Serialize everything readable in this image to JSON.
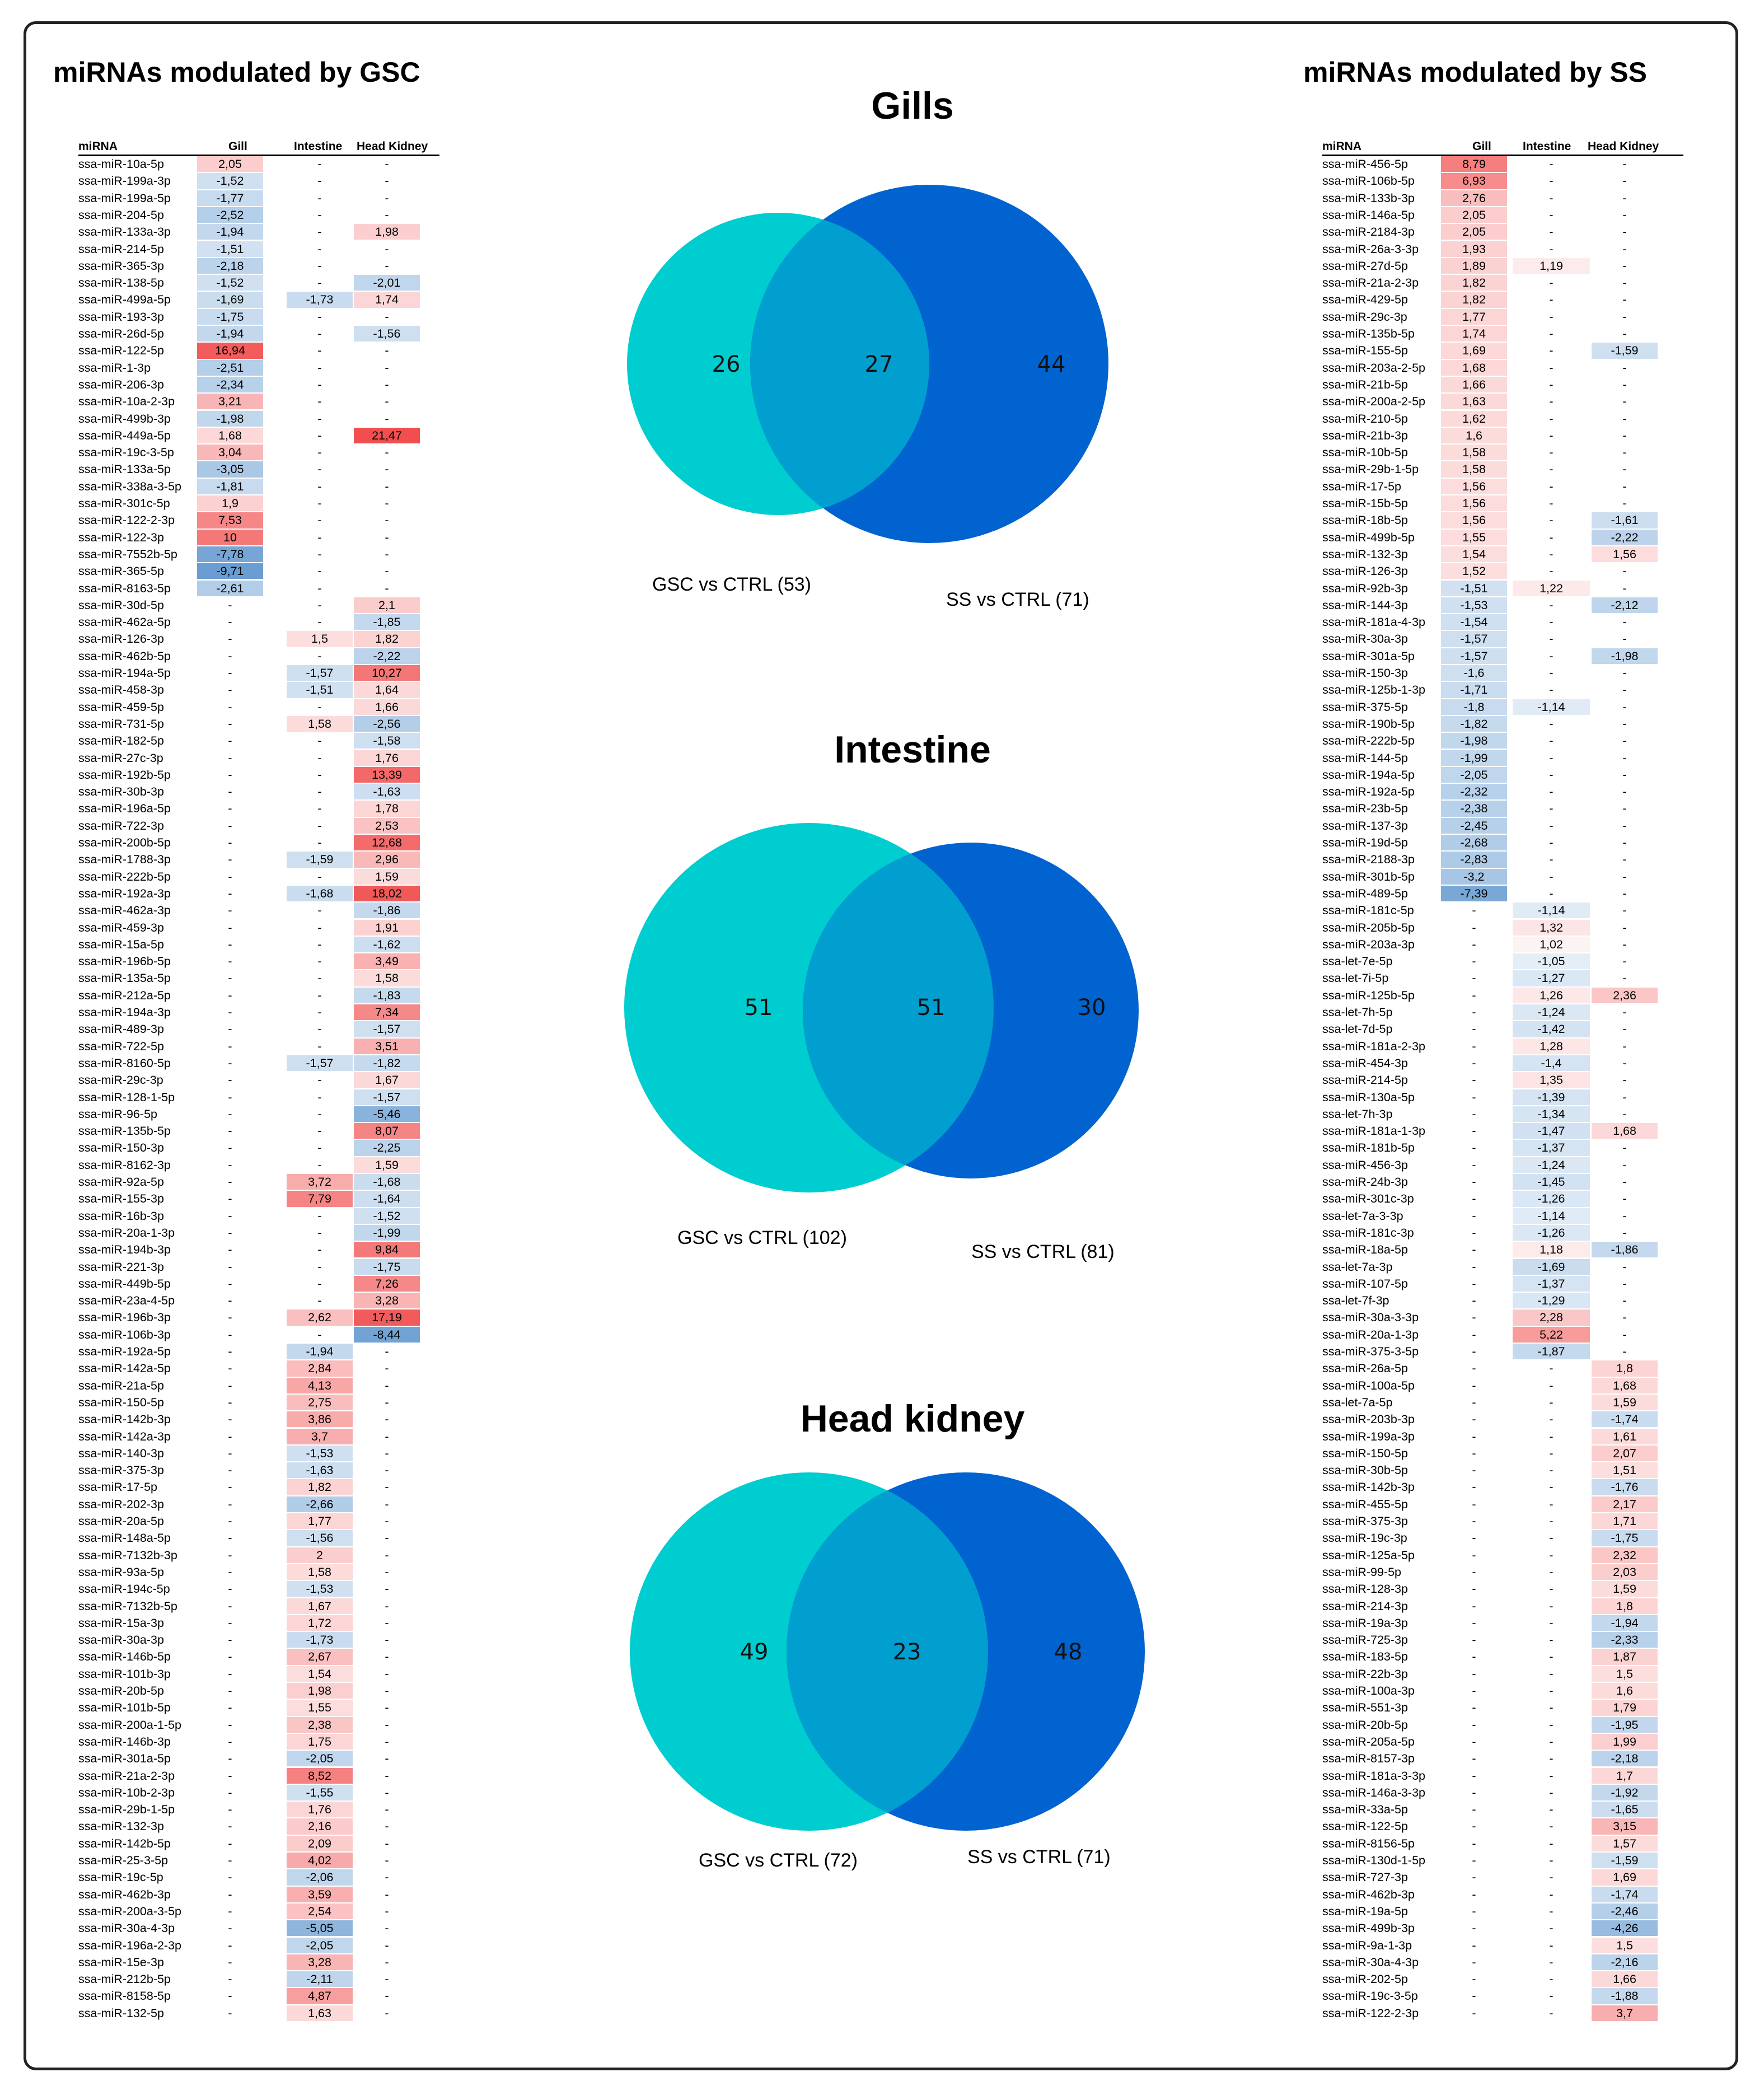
{
  "left_heading": "miRNAs modulated by GSC",
  "right_heading": "miRNAs modulated by SS",
  "table_headers": {
    "mirna": "miRNA",
    "gill": "Gill",
    "intestine": "Intestine",
    "head_kidney": "Head Kidney"
  },
  "colors": {
    "cyan": "#00cdd0",
    "blue": "#0063cf",
    "overlap": "#009fd0",
    "up": "#f05555",
    "down": "#3b7fc4"
  },
  "venns": [
    {
      "title": "Gills",
      "left": "26",
      "middle": "27",
      "right": "44",
      "left_label": "GSC vs CTRL (53)",
      "right_label": "SS vs CTRL (71)"
    },
    {
      "title": "Intestine",
      "left": "51",
      "middle": "51",
      "right": "30",
      "left_label": "GSC vs CTRL (102)",
      "right_label": "SS vs CTRL (81)"
    },
    {
      "title": "Head kidney",
      "left": "49",
      "middle": "23",
      "right": "48",
      "left_label": "GSC vs CTRL (72)",
      "right_label": "SS vs CTRL (71)"
    }
  ],
  "gsc_rows": [
    [
      "ssa-miR-10a-5p",
      "2,05",
      "-",
      "-"
    ],
    [
      "ssa-miR-199a-3p",
      "-1,52",
      "-",
      "-"
    ],
    [
      "ssa-miR-199a-5p",
      "-1,77",
      "-",
      "-"
    ],
    [
      "ssa-miR-204-5p",
      "-2,52",
      "-",
      "-"
    ],
    [
      "ssa-miR-133a-3p",
      "-1,94",
      "-",
      "1,98"
    ],
    [
      "ssa-miR-214-5p",
      "-1,51",
      "-",
      "-"
    ],
    [
      "ssa-miR-365-3p",
      "-2,18",
      "-",
      "-"
    ],
    [
      "ssa-miR-138-5p",
      "-1,52",
      "-",
      "-2,01"
    ],
    [
      "ssa-miR-499a-5p",
      "-1,69",
      "-1,73",
      "1,74"
    ],
    [
      "ssa-miR-193-3p",
      "-1,75",
      "-",
      "-"
    ],
    [
      "ssa-miR-26d-5p",
      "-1,94",
      "-",
      "-1,56"
    ],
    [
      "ssa-miR-122-5p",
      "16,94",
      "-",
      "-"
    ],
    [
      "ssa-miR-1-3p",
      "-2,51",
      "-",
      "-"
    ],
    [
      "ssa-miR-206-3p",
      "-2,34",
      "-",
      "-"
    ],
    [
      "ssa-miR-10a-2-3p",
      "3,21",
      "-",
      "-"
    ],
    [
      "ssa-miR-499b-3p",
      "-1,98",
      "-",
      "-"
    ],
    [
      "ssa-miR-449a-5p",
      "1,68",
      "-",
      "21,47"
    ],
    [
      "ssa-miR-19c-3-5p",
      "3,04",
      "-",
      "-"
    ],
    [
      "ssa-miR-133a-5p",
      "-3,05",
      "-",
      "-"
    ],
    [
      "ssa-miR-338a-3-5p",
      "-1,81",
      "-",
      "-"
    ],
    [
      "ssa-miR-301c-5p",
      "1,9",
      "-",
      "-"
    ],
    [
      "ssa-miR-122-2-3p",
      "7,53",
      "-",
      "-"
    ],
    [
      "ssa-miR-122-3p",
      "10",
      "-",
      "-"
    ],
    [
      "ssa-miR-7552b-5p",
      "-7,78",
      "-",
      "-"
    ],
    [
      "ssa-miR-365-5p",
      "-9,71",
      "-",
      "-"
    ],
    [
      "ssa-miR-8163-5p",
      "-2,61",
      "-",
      "-"
    ],
    [
      "ssa-miR-30d-5p",
      "-",
      "-",
      "2,1"
    ],
    [
      "ssa-miR-462a-5p",
      "-",
      "-",
      "-1,85"
    ],
    [
      "ssa-miR-126-3p",
      "-",
      "1,5",
      "1,82"
    ],
    [
      "ssa-miR-462b-5p",
      "-",
      "-",
      "-2,22"
    ],
    [
      "ssa-miR-194a-5p",
      "-",
      "-1,57",
      "10,27"
    ],
    [
      "ssa-miR-458-3p",
      "-",
      "-1,51",
      "1,64"
    ],
    [
      "ssa-miR-459-5p",
      "-",
      "-",
      "1,66"
    ],
    [
      "ssa-miR-731-5p",
      "-",
      "1,58",
      "-2,56"
    ],
    [
      "ssa-miR-182-5p",
      "-",
      "-",
      "-1,58"
    ],
    [
      "ssa-miR-27c-3p",
      "-",
      "-",
      "1,76"
    ],
    [
      "ssa-miR-192b-5p",
      "-",
      "-",
      "13,39"
    ],
    [
      "ssa-miR-30b-3p",
      "-",
      "-",
      "-1,63"
    ],
    [
      "ssa-miR-196a-5p",
      "-",
      "-",
      "1,78"
    ],
    [
      "ssa-miR-722-3p",
      "-",
      "-",
      "2,53"
    ],
    [
      "ssa-miR-200b-5p",
      "-",
      "-",
      "12,68"
    ],
    [
      "ssa-miR-1788-3p",
      "-",
      "-1,59",
      "2,96"
    ],
    [
      "ssa-miR-222b-5p",
      "-",
      "-",
      "1,59"
    ],
    [
      "ssa-miR-192a-3p",
      "-",
      "-1,68",
      "18,02"
    ],
    [
      "ssa-miR-462a-3p",
      "-",
      "-",
      "-1,86"
    ],
    [
      "ssa-miR-459-3p",
      "-",
      "-",
      "1,91"
    ],
    [
      "ssa-miR-15a-5p",
      "-",
      "-",
      "-1,62"
    ],
    [
      "ssa-miR-196b-5p",
      "-",
      "-",
      "3,49"
    ],
    [
      "ssa-miR-135a-5p",
      "-",
      "-",
      "1,58"
    ],
    [
      "ssa-miR-212a-5p",
      "-",
      "-",
      "-1,83"
    ],
    [
      "ssa-miR-194a-3p",
      "-",
      "-",
      "7,34"
    ],
    [
      "ssa-miR-489-3p",
      "-",
      "-",
      "-1,57"
    ],
    [
      "ssa-miR-722-5p",
      "-",
      "-",
      "3,51"
    ],
    [
      "ssa-miR-8160-5p",
      "-",
      "-1,57",
      "-1,82"
    ],
    [
      "ssa-miR-29c-3p",
      "-",
      "-",
      "1,67"
    ],
    [
      "ssa-miR-128-1-5p",
      "-",
      "-",
      "-1,57"
    ],
    [
      "ssa-miR-96-5p",
      "-",
      "-",
      "-5,46"
    ],
    [
      "ssa-miR-135b-5p",
      "-",
      "-",
      "8,07"
    ],
    [
      "ssa-miR-150-3p",
      "-",
      "-",
      "-2,25"
    ],
    [
      "ssa-miR-8162-3p",
      "-",
      "-",
      "1,59"
    ],
    [
      "ssa-miR-92a-5p",
      "-",
      "3,72",
      "-1,68"
    ],
    [
      "ssa-miR-155-3p",
      "-",
      "7,79",
      "-1,64"
    ],
    [
      "ssa-miR-16b-3p",
      "-",
      "-",
      "-1,52"
    ],
    [
      "ssa-miR-20a-1-3p",
      "-",
      "-",
      "-1,99"
    ],
    [
      "ssa-miR-194b-3p",
      "-",
      "-",
      "9,84"
    ],
    [
      "ssa-miR-221-3p",
      "-",
      "-",
      "-1,75"
    ],
    [
      "ssa-miR-449b-5p",
      "-",
      "-",
      "7,26"
    ],
    [
      "ssa-miR-23a-4-5p",
      "-",
      "-",
      "3,28"
    ],
    [
      "ssa-miR-196b-3p",
      "-",
      "2,62",
      "17,19"
    ],
    [
      "ssa-miR-106b-3p",
      "-",
      "-",
      "-8,44"
    ],
    [
      "ssa-miR-192a-5p",
      "-",
      "-1,94",
      "-"
    ],
    [
      "ssa-miR-142a-5p",
      "-",
      "2,84",
      "-"
    ],
    [
      "ssa-miR-21a-5p",
      "-",
      "4,13",
      "-"
    ],
    [
      "ssa-miR-150-5p",
      "-",
      "2,75",
      "-"
    ],
    [
      "ssa-miR-142b-3p",
      "-",
      "3,86",
      "-"
    ],
    [
      "ssa-miR-142a-3p",
      "-",
      "3,7",
      "-"
    ],
    [
      "ssa-miR-140-3p",
      "-",
      "-1,53",
      "-"
    ],
    [
      "ssa-miR-375-3p",
      "-",
      "-1,63",
      "-"
    ],
    [
      "ssa-miR-17-5p",
      "-",
      "1,82",
      "-"
    ],
    [
      "ssa-miR-202-3p",
      "-",
      "-2,66",
      "-"
    ],
    [
      "ssa-miR-20a-5p",
      "-",
      "1,77",
      "-"
    ],
    [
      "ssa-miR-148a-5p",
      "-",
      "-1,56",
      "-"
    ],
    [
      "ssa-miR-7132b-3p",
      "-",
      "2",
      "-"
    ],
    [
      "ssa-miR-93a-5p",
      "-",
      "1,58",
      "-"
    ],
    [
      "ssa-miR-194c-5p",
      "-",
      "-1,53",
      "-"
    ],
    [
      "ssa-miR-7132b-5p",
      "-",
      "1,67",
      "-"
    ],
    [
      "ssa-miR-15a-3p",
      "-",
      "1,72",
      "-"
    ],
    [
      "ssa-miR-30a-3p",
      "-",
      "-1,73",
      "-"
    ],
    [
      "ssa-miR-146b-5p",
      "-",
      "2,67",
      "-"
    ],
    [
      "ssa-miR-101b-3p",
      "-",
      "1,54",
      "-"
    ],
    [
      "ssa-miR-20b-5p",
      "-",
      "1,98",
      "-"
    ],
    [
      "ssa-miR-101b-5p",
      "-",
      "1,55",
      "-"
    ],
    [
      "ssa-miR-200a-1-5p",
      "-",
      "2,38",
      "-"
    ],
    [
      "ssa-miR-146b-3p",
      "-",
      "1,75",
      "-"
    ],
    [
      "ssa-miR-301a-5p",
      "-",
      "-2,05",
      "-"
    ],
    [
      "ssa-miR-21a-2-3p",
      "-",
      "8,52",
      "-"
    ],
    [
      "ssa-miR-10b-2-3p",
      "-",
      "-1,55",
      "-"
    ],
    [
      "ssa-miR-29b-1-5p",
      "-",
      "1,76",
      "-"
    ],
    [
      "ssa-miR-132-3p",
      "-",
      "2,16",
      "-"
    ],
    [
      "ssa-miR-142b-5p",
      "-",
      "2,09",
      "-"
    ],
    [
      "ssa-miR-25-3-5p",
      "-",
      "4,02",
      "-"
    ],
    [
      "ssa-miR-19c-5p",
      "-",
      "-2,06",
      "-"
    ],
    [
      "ssa-miR-462b-3p",
      "-",
      "3,59",
      "-"
    ],
    [
      "ssa-miR-200a-3-5p",
      "-",
      "2,54",
      "-"
    ],
    [
      "ssa-miR-30a-4-3p",
      "-",
      "-5,05",
      "-"
    ],
    [
      "ssa-miR-196a-2-3p",
      "-",
      "-2,05",
      "-"
    ],
    [
      "ssa-miR-15e-3p",
      "-",
      "3,28",
      "-"
    ],
    [
      "ssa-miR-212b-5p",
      "-",
      "-2,11",
      "-"
    ],
    [
      "ssa-miR-8158-5p",
      "-",
      "4,87",
      "-"
    ],
    [
      "ssa-miR-132-5p",
      "-",
      "1,63",
      "-"
    ]
  ],
  "ss_rows": [
    [
      "ssa-miR-456-5p",
      "8,79",
      "-",
      "-"
    ],
    [
      "ssa-miR-106b-5p",
      "6,93",
      "-",
      "-"
    ],
    [
      "ssa-miR-133b-3p",
      "2,76",
      "-",
      "-"
    ],
    [
      "ssa-miR-146a-5p",
      "2,05",
      "-",
      "-"
    ],
    [
      "ssa-miR-2184-3p",
      "2,05",
      "-",
      "-"
    ],
    [
      "ssa-miR-26a-3-3p",
      "1,93",
      "-",
      "-"
    ],
    [
      "ssa-miR-27d-5p",
      "1,89",
      "1,19",
      "-"
    ],
    [
      "ssa-miR-21a-2-3p",
      "1,82",
      "-",
      "-"
    ],
    [
      "ssa-miR-429-5p",
      "1,82",
      "-",
      "-"
    ],
    [
      "ssa-miR-29c-3p",
      "1,77",
      "-",
      "-"
    ],
    [
      "ssa-miR-135b-5p",
      "1,74",
      "-",
      "-"
    ],
    [
      "ssa-miR-155-5p",
      "1,69",
      "-",
      "-1,59"
    ],
    [
      "ssa-miR-203a-2-5p",
      "1,68",
      "-",
      "-"
    ],
    [
      "ssa-miR-21b-5p",
      "1,66",
      "-",
      "-"
    ],
    [
      "ssa-miR-200a-2-5p",
      "1,63",
      "-",
      "-"
    ],
    [
      "ssa-miR-210-5p",
      "1,62",
      "-",
      "-"
    ],
    [
      "ssa-miR-21b-3p",
      "1,6",
      "-",
      "-"
    ],
    [
      "ssa-miR-10b-5p",
      "1,58",
      "-",
      "-"
    ],
    [
      "ssa-miR-29b-1-5p",
      "1,58",
      "-",
      "-"
    ],
    [
      "ssa-miR-17-5p",
      "1,56",
      "-",
      "-"
    ],
    [
      "ssa-miR-15b-5p",
      "1,56",
      "-",
      "-"
    ],
    [
      "ssa-miR-18b-5p",
      "1,56",
      "-",
      "-1,61"
    ],
    [
      "ssa-miR-499b-5p",
      "1,55",
      "-",
      "-2,22"
    ],
    [
      "ssa-miR-132-3p",
      "1,54",
      "-",
      "1,56"
    ],
    [
      "ssa-miR-126-3p",
      "1,52",
      "-",
      "-"
    ],
    [
      "ssa-miR-92b-3p",
      "-1,51",
      "1,22",
      "-"
    ],
    [
      "ssa-miR-144-3p",
      "-1,53",
      "-",
      "-2,12"
    ],
    [
      "ssa-miR-181a-4-3p",
      "-1,54",
      "-",
      "-"
    ],
    [
      "ssa-miR-30a-3p",
      "-1,57",
      "-",
      "-"
    ],
    [
      "ssa-miR-301a-5p",
      "-1,57",
      "-",
      "-1,98"
    ],
    [
      "ssa-miR-150-3p",
      "-1,6",
      "-",
      "-"
    ],
    [
      "ssa-miR-125b-1-3p",
      "-1,71",
      "-",
      "-"
    ],
    [
      "ssa-miR-375-5p",
      "-1,8",
      "-1,14",
      "-"
    ],
    [
      "ssa-miR-190b-5p",
      "-1,82",
      "-",
      "-"
    ],
    [
      "ssa-miR-222b-5p",
      "-1,98",
      "-",
      "-"
    ],
    [
      "ssa-miR-144-5p",
      "-1,99",
      "-",
      "-"
    ],
    [
      "ssa-miR-194a-5p",
      "-2,05",
      "-",
      "-"
    ],
    [
      "ssa-miR-192a-5p",
      "-2,32",
      "-",
      "-"
    ],
    [
      "ssa-miR-23b-5p",
      "-2,38",
      "-",
      "-"
    ],
    [
      "ssa-miR-137-3p",
      "-2,45",
      "-",
      "-"
    ],
    [
      "ssa-miR-19d-5p",
      "-2,68",
      "-",
      "-"
    ],
    [
      "ssa-miR-2188-3p",
      "-2,83",
      "-",
      "-"
    ],
    [
      "ssa-miR-301b-5p",
      "-3,2",
      "-",
      "-"
    ],
    [
      "ssa-miR-489-5p",
      "-7,39",
      "-",
      "-"
    ],
    [
      "ssa-miR-181c-5p",
      "-",
      "-1,14",
      "-"
    ],
    [
      "ssa-miR-205b-5p",
      "-",
      "1,32",
      "-"
    ],
    [
      "ssa-miR-203a-3p",
      "-",
      "1,02",
      "-"
    ],
    [
      "ssa-let-7e-5p",
      "-",
      "-1,05",
      "-"
    ],
    [
      "ssa-let-7i-5p",
      "-",
      "-1,27",
      "-"
    ],
    [
      "ssa-miR-125b-5p",
      "-",
      "1,26",
      "2,36"
    ],
    [
      "ssa-let-7h-5p",
      "-",
      "-1,24",
      "-"
    ],
    [
      "ssa-let-7d-5p",
      "-",
      "-1,42",
      "-"
    ],
    [
      "ssa-miR-181a-2-3p",
      "-",
      "1,28",
      "-"
    ],
    [
      "ssa-miR-454-3p",
      "-",
      "-1,4",
      "-"
    ],
    [
      "ssa-miR-214-5p",
      "-",
      "1,35",
      "-"
    ],
    [
      "ssa-miR-130a-5p",
      "-",
      "-1,39",
      "-"
    ],
    [
      "ssa-let-7h-3p",
      "-",
      "-1,34",
      "-"
    ],
    [
      "ssa-miR-181a-1-3p",
      "-",
      "-1,47",
      "1,68"
    ],
    [
      "ssa-miR-181b-5p",
      "-",
      "-1,37",
      "-"
    ],
    [
      "ssa-miR-456-3p",
      "-",
      "-1,24",
      "-"
    ],
    [
      "ssa-miR-24b-3p",
      "-",
      "-1,45",
      "-"
    ],
    [
      "ssa-miR-301c-3p",
      "-",
      "-1,26",
      "-"
    ],
    [
      "ssa-let-7a-3-3p",
      "-",
      "-1,14",
      "-"
    ],
    [
      "ssa-miR-181c-3p",
      "-",
      "-1,26",
      "-"
    ],
    [
      "ssa-miR-18a-5p",
      "-",
      "1,18",
      "-1,86"
    ],
    [
      "ssa-let-7a-3p",
      "-",
      "-1,69",
      "-"
    ],
    [
      "ssa-miR-107-5p",
      "-",
      "-1,37",
      "-"
    ],
    [
      "ssa-let-7f-3p",
      "-",
      "-1,29",
      "-"
    ],
    [
      "ssa-miR-30a-3-3p",
      "-",
      "2,28",
      "-"
    ],
    [
      "ssa-miR-20a-1-3p",
      "-",
      "5,22",
      "-"
    ],
    [
      "ssa-miR-375-3-5p",
      "-",
      "-1,87",
      "-"
    ],
    [
      "ssa-miR-26a-5p",
      "-",
      "-",
      "1,8"
    ],
    [
      "ssa-miR-100a-5p",
      "-",
      "-",
      "1,68"
    ],
    [
      "ssa-let-7a-5p",
      "-",
      "-",
      "1,59"
    ],
    [
      "ssa-miR-203b-3p",
      "-",
      "-",
      "-1,74"
    ],
    [
      "ssa-miR-199a-3p",
      "-",
      "-",
      "1,61"
    ],
    [
      "ssa-miR-150-5p",
      "-",
      "-",
      "2,07"
    ],
    [
      "ssa-miR-30b-5p",
      "-",
      "-",
      "1,51"
    ],
    [
      "ssa-miR-142b-3p",
      "-",
      "-",
      "-1,76"
    ],
    [
      "ssa-miR-455-5p",
      "-",
      "-",
      "2,17"
    ],
    [
      "ssa-miR-375-3p",
      "-",
      "-",
      "1,71"
    ],
    [
      "ssa-miR-19c-3p",
      "-",
      "-",
      "-1,75"
    ],
    [
      "ssa-miR-125a-5p",
      "-",
      "-",
      "2,32"
    ],
    [
      "ssa-miR-99-5p",
      "-",
      "-",
      "2,03"
    ],
    [
      "ssa-miR-128-3p",
      "-",
      "-",
      "1,59"
    ],
    [
      "ssa-miR-214-3p",
      "-",
      "-",
      "1,8"
    ],
    [
      "ssa-miR-19a-3p",
      "-",
      "-",
      "-1,94"
    ],
    [
      "ssa-miR-725-3p",
      "-",
      "-",
      "-2,33"
    ],
    [
      "ssa-miR-183-5p",
      "-",
      "-",
      "1,87"
    ],
    [
      "ssa-miR-22b-3p",
      "-",
      "-",
      "1,5"
    ],
    [
      "ssa-miR-100a-3p",
      "-",
      "-",
      "1,6"
    ],
    [
      "ssa-miR-551-3p",
      "-",
      "-",
      "1,79"
    ],
    [
      "ssa-miR-20b-5p",
      "-",
      "-",
      "-1,95"
    ],
    [
      "ssa-miR-205a-5p",
      "-",
      "-",
      "1,99"
    ],
    [
      "ssa-miR-8157-3p",
      "-",
      "-",
      "-2,18"
    ],
    [
      "ssa-miR-181a-3-3p",
      "-",
      "-",
      "1,7"
    ],
    [
      "ssa-miR-146a-3-3p",
      "-",
      "-",
      "-1,92"
    ],
    [
      "ssa-miR-33a-5p",
      "-",
      "-",
      "-1,65"
    ],
    [
      "ssa-miR-122-5p",
      "-",
      "-",
      "3,15"
    ],
    [
      "ssa-miR-8156-5p",
      "-",
      "-",
      "1,57"
    ],
    [
      "ssa-miR-130d-1-5p",
      "-",
      "-",
      "-1,59"
    ],
    [
      "ssa-miR-727-3p",
      "-",
      "-",
      "1,69"
    ],
    [
      "ssa-miR-462b-3p",
      "-",
      "-",
      "-1,74"
    ],
    [
      "ssa-miR-19a-5p",
      "-",
      "-",
      "-2,46"
    ],
    [
      "ssa-miR-499b-3p",
      "-",
      "-",
      "-4,26"
    ],
    [
      "ssa-miR-9a-1-3p",
      "-",
      "-",
      "1,5"
    ],
    [
      "ssa-miR-30a-4-3p",
      "-",
      "-",
      "-2,16"
    ],
    [
      "ssa-miR-202-5p",
      "-",
      "-",
      "1,66"
    ],
    [
      "ssa-miR-19c-3-5p",
      "-",
      "-",
      "-1,88"
    ],
    [
      "ssa-miR-122-2-3p",
      "-",
      "-",
      "3,7"
    ]
  ]
}
